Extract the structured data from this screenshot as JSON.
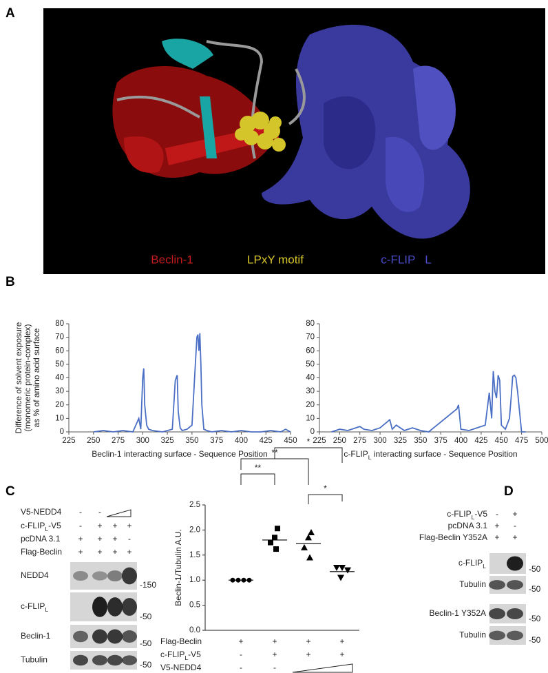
{
  "panels": [
    "A",
    "B",
    "C",
    "D"
  ],
  "structure_labels": {
    "beclin": "Beclin-1",
    "motif": "LPxY motif",
    "flip": "c-FLIP   L"
  },
  "chart_data": [
    {
      "type": "line",
      "ylabel": [
        "Difference of solvent exposure",
        "(monomeric protein-complex)",
        "as % of amino acid surface"
      ],
      "xlabel": "Beclin-1 interacting surface - Sequence Position",
      "x": [
        250,
        260,
        270,
        280,
        290,
        296,
        298,
        300,
        301,
        302,
        304,
        306,
        310,
        320,
        330,
        333,
        335,
        336,
        338,
        340,
        345,
        350,
        353,
        355,
        356,
        357,
        358,
        359,
        360,
        362,
        365,
        370,
        380,
        390,
        400,
        410,
        420,
        430,
        440,
        445,
        450
      ],
      "series": [
        {
          "color": "#4a6fc4",
          "values": [
            0,
            1,
            0,
            1,
            0,
            10,
            2,
            40,
            47,
            20,
            5,
            2,
            1,
            0,
            2,
            38,
            42,
            15,
            3,
            1,
            2,
            5,
            45,
            70,
            72,
            60,
            73,
            50,
            20,
            2,
            1,
            0,
            1,
            0,
            1,
            0,
            0,
            1,
            0,
            2,
            0
          ]
        }
      ],
      "xlim": [
        225,
        450
      ],
      "ylim": [
        0,
        80
      ],
      "xticks": [
        225,
        250,
        275,
        300,
        325,
        350,
        375,
        400,
        425,
        450
      ],
      "yticks": [
        0,
        10,
        20,
        30,
        40,
        50,
        60,
        70,
        80
      ]
    },
    {
      "type": "line",
      "xlabel": [
        "c-FLIP",
        "L",
        " interacting surface - Sequence Position"
      ],
      "x": [
        240,
        250,
        260,
        270,
        275,
        280,
        290,
        300,
        310,
        312,
        315,
        320,
        330,
        340,
        350,
        360,
        395,
        397,
        400,
        410,
        420,
        430,
        435,
        438,
        440,
        442,
        444,
        446,
        448,
        450,
        455,
        460,
        462,
        464,
        466,
        468,
        470,
        475,
        480
      ],
      "series": [
        {
          "color": "#4a6fc4",
          "values": [
            0,
            2,
            1,
            3,
            4,
            2,
            1,
            3,
            8,
            9,
            2,
            5,
            1,
            3,
            1,
            0,
            17,
            20,
            2,
            1,
            3,
            5,
            29,
            10,
            45,
            30,
            25,
            42,
            38,
            5,
            2,
            10,
            25,
            41,
            42,
            40,
            30,
            0,
            0
          ]
        }
      ],
      "xlim": [
        225,
        500
      ],
      "ylim": [
        0,
        80
      ],
      "xticks": [
        225,
        250,
        275,
        300,
        325,
        350,
        375,
        400,
        425,
        450,
        475,
        500
      ],
      "yticks": [
        0,
        10,
        20,
        30,
        40,
        50,
        60,
        70,
        80
      ]
    },
    {
      "type": "scatter",
      "ylabel": "Beclin-1/Tubulin A.U.",
      "ylim": [
        0,
        2.5
      ],
      "yticks": [
        {
          "value": 0,
          "label": "0.0"
        },
        {
          "value": 0.5,
          "label": "0.5"
        },
        {
          "value": 1,
          "label": "1.0"
        },
        {
          "value": 1.5,
          "label": "1.5"
        },
        {
          "value": 2,
          "label": "2.0"
        },
        {
          "value": 2.5,
          "label": "2.5"
        }
      ],
      "groups": [
        {
          "marker": "circle",
          "values": [
            1.0,
            1.0,
            1.0,
            1.0
          ],
          "mean": 1.0
        },
        {
          "marker": "square",
          "values": [
            2.03,
            1.85,
            1.75,
            1.62
          ],
          "mean": 1.8
        },
        {
          "marker": "triangle",
          "values": [
            1.95,
            1.85,
            1.65,
            1.45
          ],
          "mean": 1.73
        },
        {
          "marker": "triangle-down",
          "values": [
            1.25,
            1.25,
            1.2,
            1.05
          ],
          "mean": 1.17
        }
      ],
      "significance": [
        {
          "label": "**",
          "between": [
            0,
            1
          ]
        },
        {
          "label": "**",
          "between": [
            0,
            2
          ]
        },
        {
          "label": "*",
          "between": [
            1,
            3
          ]
        },
        {
          "label": "*",
          "between": [
            2,
            3
          ]
        }
      ],
      "conditions": [
        {
          "name": "Flag-Beclin",
          "signs": [
            "+",
            "+",
            "+",
            "+"
          ]
        },
        {
          "name": [
            "c-FLIP",
            "L",
            "-V5"
          ],
          "signs": [
            "-",
            "+",
            "+",
            "+"
          ]
        },
        {
          "name": "V5-NEDD4",
          "signs": [
            "-",
            "-"
          ],
          "wedge": true
        }
      ]
    }
  ],
  "blot_c": {
    "conditions": [
      {
        "name": "V5-NEDD4",
        "signs": [
          "-",
          "-"
        ],
        "wedge": true
      },
      {
        "name": [
          "c-FLIP",
          "L",
          "-V5"
        ],
        "signs": [
          "-",
          "+",
          "+",
          "+"
        ]
      },
      {
        "name": "pcDNA 3.1",
        "signs": [
          "+",
          "+",
          "+",
          "-"
        ]
      },
      {
        "name": "Flag-Beclin",
        "signs": [
          "+",
          "+",
          "+",
          "+"
        ]
      }
    ],
    "bands": [
      {
        "name": "NEDD4",
        "marker": "-150"
      },
      {
        "name": [
          "c-FLIP",
          "L"
        ],
        "marker": "-50"
      },
      {
        "name": "Beclin-1",
        "marker": "-50"
      },
      {
        "name": "Tubulin",
        "marker": "-50"
      }
    ]
  },
  "blot_d": {
    "conditions": [
      {
        "name": [
          "c-FLIP",
          "L",
          "-V5"
        ],
        "signs": [
          "-",
          "+"
        ]
      },
      {
        "name": "pcDNA 3.1",
        "signs": [
          "+",
          "-"
        ]
      },
      {
        "name": "Flag-Beclin Y352A",
        "signs": [
          "+",
          "+"
        ]
      }
    ],
    "bands": [
      {
        "name": [
          "c-FLIP",
          "L"
        ],
        "marker": "-50"
      },
      {
        "name": "Tubulin",
        "marker": "-50"
      },
      {
        "name": "Beclin-1 Y352A",
        "marker": "-50"
      },
      {
        "name": "Tubulin",
        "marker": "-50"
      }
    ]
  }
}
